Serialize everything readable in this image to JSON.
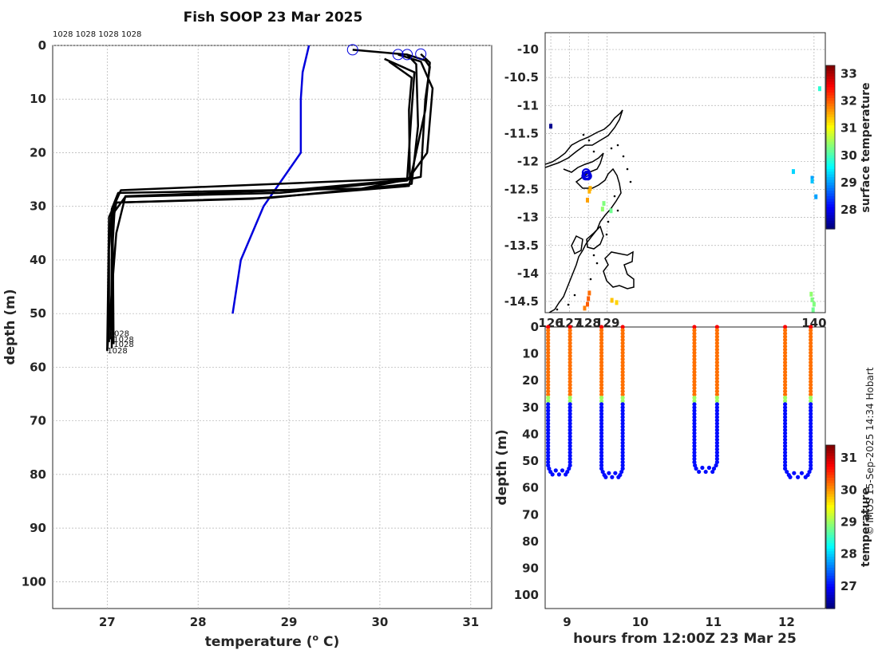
{
  "title": "Fish SOOP 23 Mar 2025",
  "credit": "© IMOS 15-Sep-2025 14:34 Hobart",
  "colors": {
    "profile": "#000000",
    "climatology": "#0000dd",
    "grid": "#b0b0b0"
  },
  "chart_data": [
    {
      "id": "profile",
      "type": "line",
      "xlabel": "temperature (",
      "xlabel_sup": "o",
      "xlabel_tail": " C)",
      "ylabel": "depth (m)",
      "xlim": [
        26.4,
        31.23
      ],
      "ylim": [
        0,
        105
      ],
      "xticks": [
        "27",
        "28",
        "29",
        "30",
        "31"
      ],
      "yticks": [
        "0",
        "10",
        "20",
        "30",
        "40",
        "50",
        "60",
        "70",
        "80",
        "90",
        "100"
      ],
      "top_labels": "1028 1028 1028 1028",
      "end_labels": [
        "1028",
        "1028",
        "1028",
        "1028"
      ],
      "climatology": {
        "depth": [
          0,
          5,
          10,
          20,
          30,
          40,
          50
        ],
        "temp": [
          29.22,
          29.15,
          29.13,
          29.13,
          28.72,
          28.47,
          28.38
        ]
      },
      "series": [
        {
          "depth": [
            0.8,
            1.7,
            2.8,
            4,
            10,
            24.5,
            26.7,
            27.5,
            30.5,
            38,
            55.3
          ],
          "temp": [
            29.7,
            30.3,
            30.5,
            30.55,
            30.5,
            30.45,
            29.8,
            27.12,
            27.05,
            27.02,
            27.02
          ]
        },
        {
          "depth": [
            1.7,
            3,
            8,
            20,
            25.2,
            27.5,
            28.2,
            31,
            40,
            54.8
          ],
          "temp": [
            30.2,
            30.45,
            30.58,
            30.52,
            30.3,
            28.9,
            27.2,
            27.08,
            27.05,
            27.04
          ]
        },
        {
          "depth": [
            1.7,
            3.5,
            15,
            25.8,
            28.4,
            29.3,
            33,
            55.7
          ],
          "temp": [
            30.3,
            30.4,
            30.42,
            30.35,
            28.8,
            27.1,
            27.06,
            27.07
          ]
        },
        {
          "depth": [
            1.6,
            3.2,
            12,
            26.2,
            28.6,
            29.3,
            33,
            56.5
          ],
          "temp": [
            30.45,
            30.55,
            30.5,
            30.32,
            28.6,
            27.08,
            27.05,
            27.05
          ]
        },
        {
          "depth": [
            2.5,
            5,
            12,
            25,
            27,
            28.1,
            35,
            57
          ],
          "temp": [
            30.05,
            30.38,
            30.35,
            30.3,
            29.0,
            27.2,
            27.1,
            27.0
          ]
        },
        {
          "depth": [
            3,
            6,
            12,
            24.8,
            27,
            32,
            56.8
          ],
          "temp": [
            30.1,
            30.35,
            30.32,
            30.33,
            27.15,
            27.02,
            27.0
          ]
        }
      ],
      "start_markers": [
        {
          "depth": 0.8,
          "temp": 29.7
        },
        {
          "depth": 1.7,
          "temp": 30.2
        },
        {
          "depth": 1.7,
          "temp": 30.3
        },
        {
          "depth": 1.6,
          "temp": 30.45
        }
      ]
    },
    {
      "id": "map",
      "type": "scatter",
      "xlim": [
        125.7,
        140.6
      ],
      "ylim": [
        -14.7,
        -9.7
      ],
      "xticks": [
        "126",
        "127",
        "128",
        "129",
        "140"
      ],
      "xtick_values": [
        126,
        127,
        128,
        129,
        140
      ],
      "yticks": [
        "-10",
        "-10.5",
        "-11",
        "-11.5",
        "-12",
        "-12.5",
        "-13",
        "-13.5",
        "-14",
        "-14.5"
      ],
      "colorbar_label": "surface temperature",
      "colorbar_range": [
        27.3,
        33.3
      ],
      "colorbar_ticks": [
        "33",
        "32",
        "31",
        "30",
        "29",
        "28"
      ],
      "vessel_markers": [
        {
          "lon": 127.88,
          "lat": -12.2
        },
        {
          "lon": 127.93,
          "lat": -12.24
        },
        {
          "lon": 127.86,
          "lat": -12.26
        },
        {
          "lon": 127.96,
          "lat": -12.26
        }
      ],
      "points": [
        {
          "lon": 126.0,
          "lat": -11.37,
          "sst": 27.4
        },
        {
          "lon": 140.3,
          "lat": -10.7,
          "sst": 29.8
        },
        {
          "lon": 139.9,
          "lat": -12.3,
          "sst": 29.0
        },
        {
          "lon": 139.9,
          "lat": -12.35,
          "sst": 29.2
        },
        {
          "lon": 140.1,
          "lat": -12.63,
          "sst": 29.0
        },
        {
          "lon": 138.9,
          "lat": -12.18,
          "sst": 29.3
        },
        {
          "lon": 128.1,
          "lat": -12.48,
          "sst": 31.5
        },
        {
          "lon": 128.05,
          "lat": -12.53,
          "sst": 31.5
        },
        {
          "lon": 127.95,
          "lat": -12.69,
          "sst": 31.6
        },
        {
          "lon": 128.82,
          "lat": -12.75,
          "sst": 30.3
        },
        {
          "lon": 128.75,
          "lat": -12.85,
          "sst": 30.4
        },
        {
          "lon": 129.2,
          "lat": -12.88,
          "sst": 30.2
        },
        {
          "lon": 128.05,
          "lat": -14.35,
          "sst": 31.9
        },
        {
          "lon": 128.0,
          "lat": -14.45,
          "sst": 32.0
        },
        {
          "lon": 127.95,
          "lat": -14.55,
          "sst": 32.0
        },
        {
          "lon": 127.8,
          "lat": -14.62,
          "sst": 31.8
        },
        {
          "lon": 129.25,
          "lat": -14.48,
          "sst": 31.4
        },
        {
          "lon": 129.5,
          "lat": -14.52,
          "sst": 31.3
        },
        {
          "lon": 139.85,
          "lat": -14.37,
          "sst": 30.4
        },
        {
          "lon": 139.9,
          "lat": -14.47,
          "sst": 30.3
        },
        {
          "lon": 140.0,
          "lat": -14.55,
          "sst": 30.3
        },
        {
          "lon": 139.95,
          "lat": -14.65,
          "sst": 30.2
        }
      ]
    },
    {
      "id": "section",
      "type": "scatter",
      "xlabel": "hours from 12:00Z 23 Mar 25",
      "ylabel": "depth (m)",
      "xlim": [
        8.7,
        12.53
      ],
      "ylim": [
        0,
        105
      ],
      "xticks": [
        "9",
        "10",
        "11",
        "12"
      ],
      "yticks": [
        "0",
        "10",
        "20",
        "30",
        "40",
        "50",
        "60",
        "70",
        "80",
        "90",
        "100"
      ],
      "colorbar_label": "temperature",
      "colorbar_range": [
        26.3,
        31.4
      ],
      "colorbar_ticks": [
        "31",
        "30",
        "29",
        "28",
        "27"
      ],
      "casts": [
        {
          "x_down": 8.74,
          "x_bottom": 8.88,
          "x_up": 9.04,
          "bottom_depth": 55
        },
        {
          "x_down": 9.47,
          "x_bottom": 9.62,
          "x_up": 9.76,
          "bottom_depth": 56
        },
        {
          "x_down": 10.74,
          "x_bottom": 10.85,
          "x_up": 11.05,
          "bottom_depth": 54
        },
        {
          "x_down": 11.98,
          "x_bottom": 12.18,
          "x_up": 12.33,
          "bottom_depth": 56
        }
      ],
      "profile_temps": {
        "surface": 30.5,
        "mixed": 30.2,
        "thermocline": 29.0,
        "deep": 27.0,
        "mld": 26
      }
    }
  ]
}
